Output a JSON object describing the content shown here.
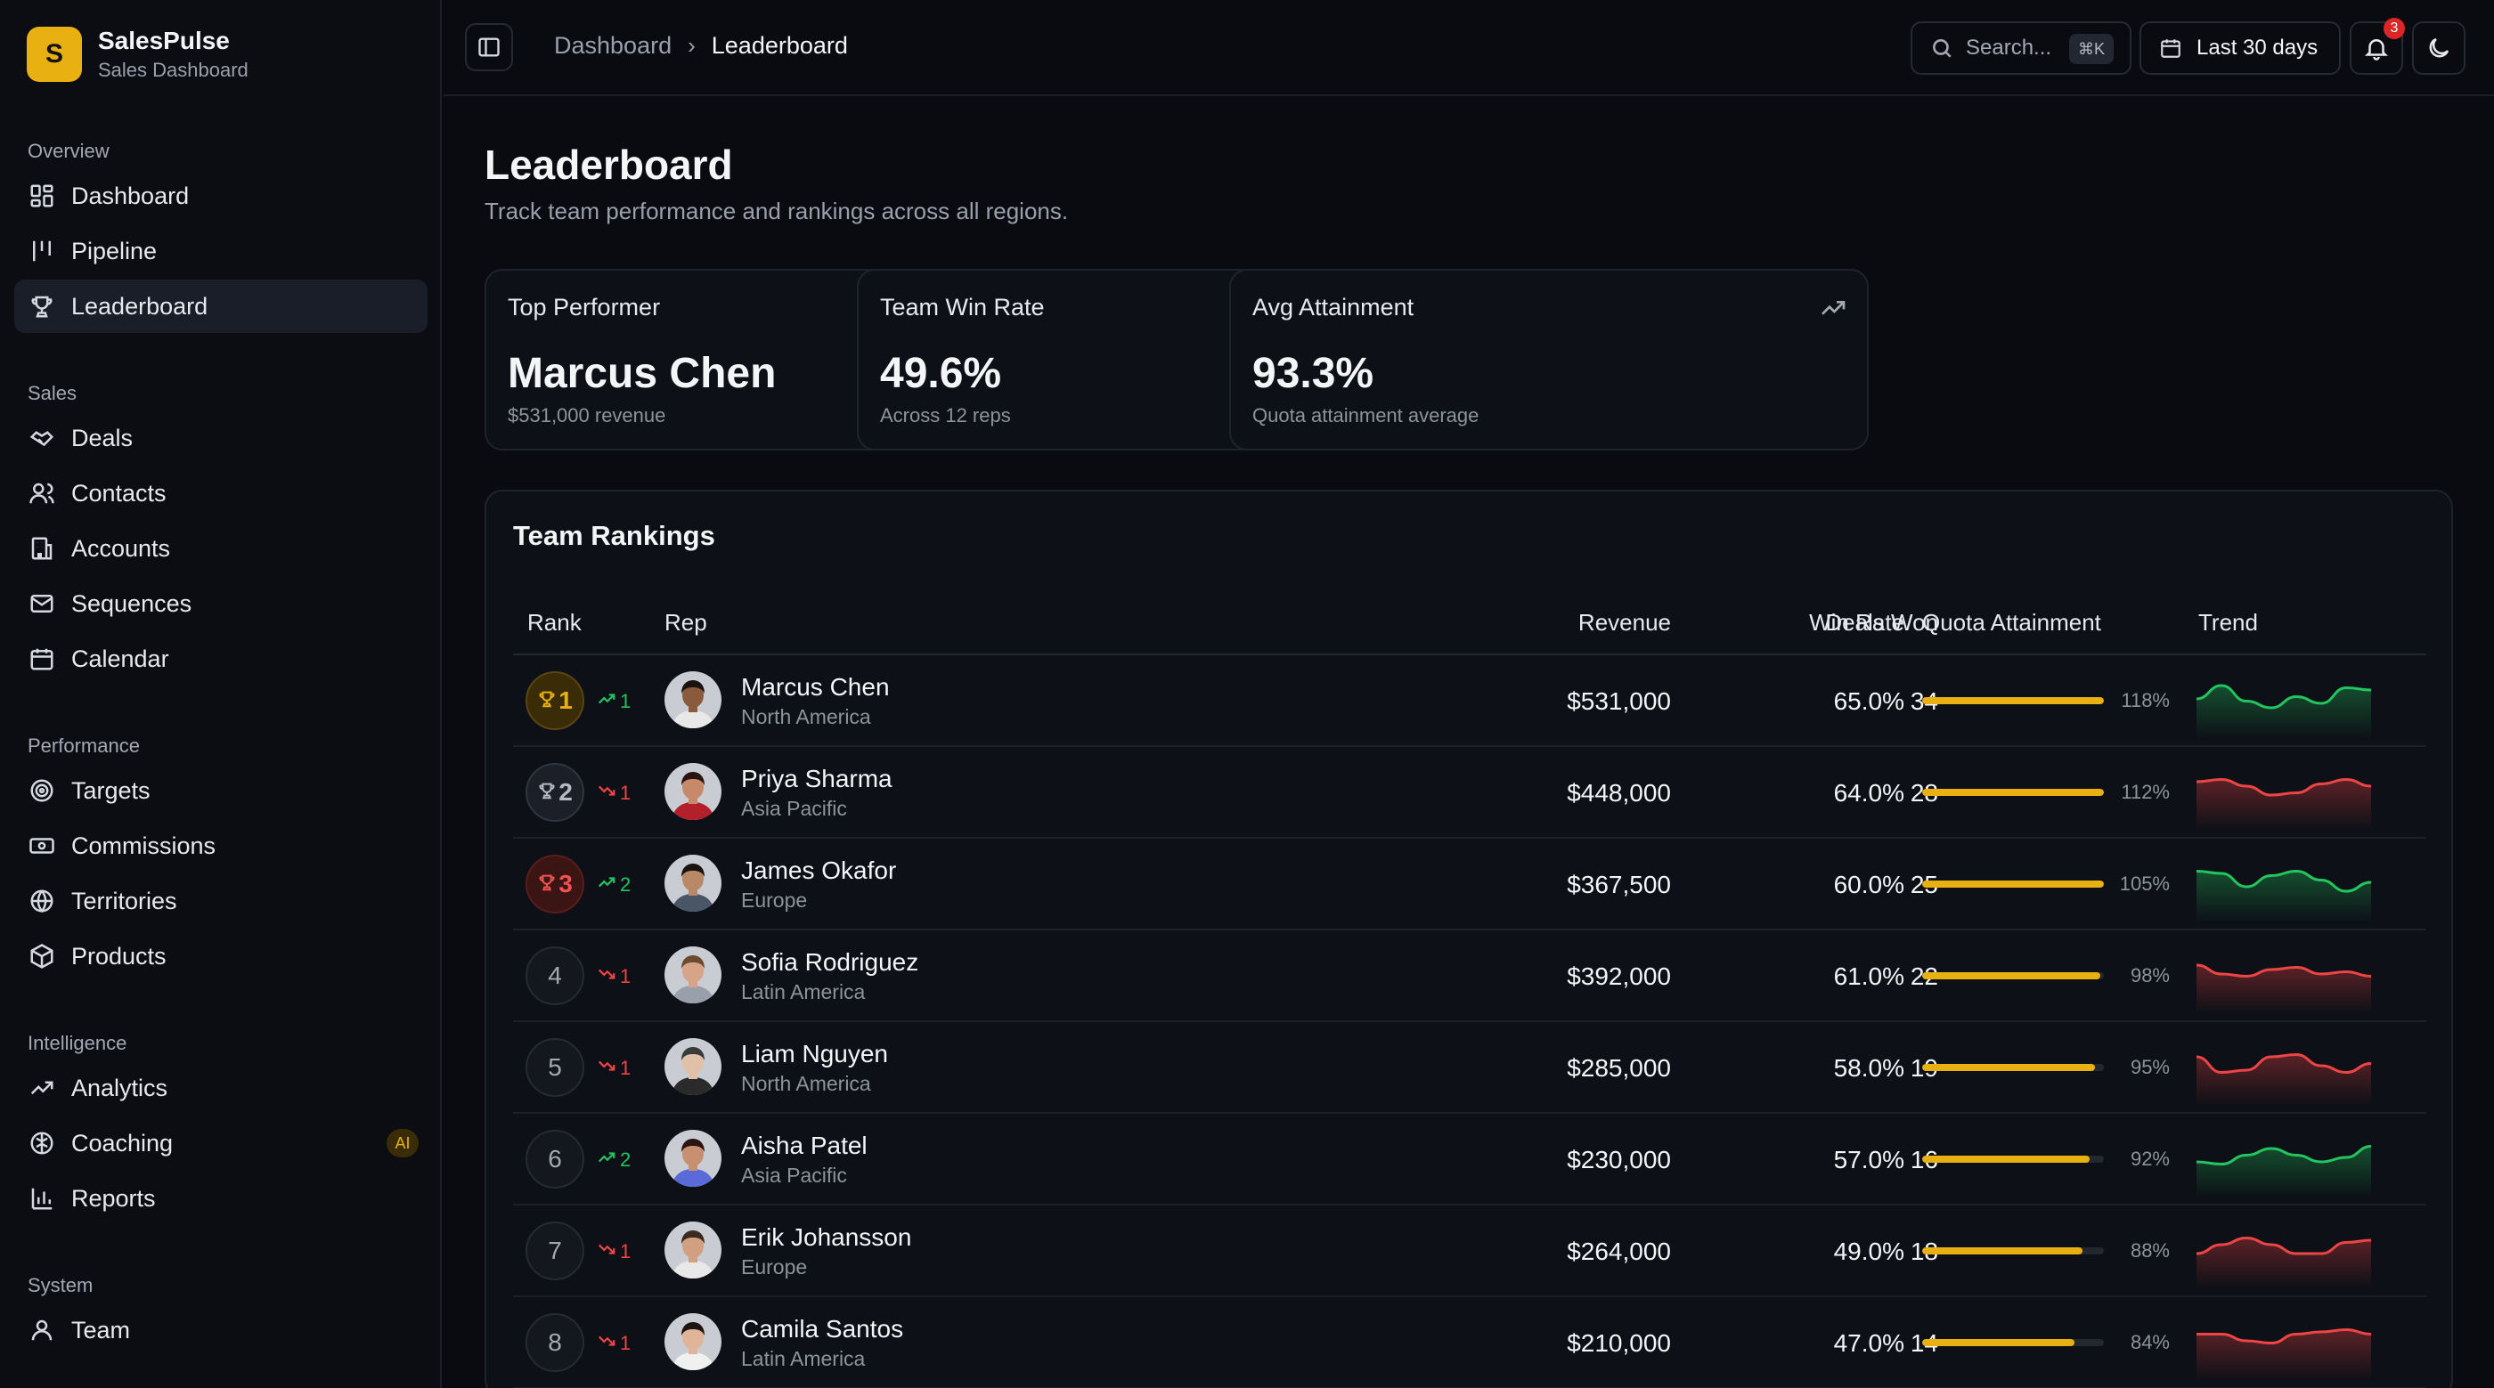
{
  "brand": {
    "logo_letter": "S",
    "name": "SalesPulse",
    "subtitle": "Sales Dashboard"
  },
  "sidebar": {
    "sections": [
      {
        "title": "Overview",
        "items": [
          {
            "label": "Dashboard",
            "icon": "grid-icon"
          },
          {
            "label": "Pipeline",
            "icon": "pipeline-icon"
          },
          {
            "label": "Leaderboard",
            "icon": "trophy-icon",
            "active": true
          }
        ]
      },
      {
        "title": "Sales",
        "items": [
          {
            "label": "Deals",
            "icon": "handshake-icon"
          },
          {
            "label": "Contacts",
            "icon": "users-icon"
          },
          {
            "label": "Accounts",
            "icon": "building-icon"
          },
          {
            "label": "Sequences",
            "icon": "mail-icon"
          },
          {
            "label": "Calendar",
            "icon": "calendar-icon"
          }
        ]
      },
      {
        "title": "Performance",
        "items": [
          {
            "label": "Targets",
            "icon": "target-icon"
          },
          {
            "label": "Commissions",
            "icon": "banknote-icon"
          },
          {
            "label": "Territories",
            "icon": "globe-icon"
          },
          {
            "label": "Products",
            "icon": "package-icon"
          }
        ]
      },
      {
        "title": "Intelligence",
        "items": [
          {
            "label": "Analytics",
            "icon": "trending-up-icon"
          },
          {
            "label": "Coaching",
            "icon": "brain-icon",
            "badge": "AI"
          },
          {
            "label": "Reports",
            "icon": "bar-chart-icon"
          }
        ]
      },
      {
        "title": "System",
        "items": [
          {
            "label": "Team",
            "icon": "user-icon"
          }
        ]
      }
    ]
  },
  "topbar": {
    "breadcrumb": [
      "Dashboard",
      "Leaderboard"
    ],
    "search_placeholder": "Search...",
    "search_shortcut": "⌘K",
    "date_range": "Last 30 days",
    "notification_count": "3"
  },
  "page": {
    "title": "Leaderboard",
    "subtitle": "Track team performance and rankings across all regions."
  },
  "cards": [
    {
      "label": "Top Performer",
      "value": "Marcus Chen",
      "sub": "$531,000 revenue",
      "icon": "trophy-icon",
      "icon_color": "#e8b010"
    },
    {
      "label": "Team Win Rate",
      "value": "49.6%",
      "sub": "Across 12 reps",
      "icon": "target-icon",
      "icon_color": "#a3a8b2"
    },
    {
      "label": "Avg Attainment",
      "value": "93.3%",
      "sub": "Quota attainment average",
      "icon": "trending-up-icon",
      "icon_color": "#a3a8b2"
    }
  ],
  "rankings": {
    "title": "Team Rankings",
    "columns": [
      "Rank",
      "Rep",
      "Revenue",
      "Deals Won",
      "Win Rate",
      "Quota Attainment",
      "Trend"
    ],
    "rows": [
      {
        "rank": "1",
        "style": "gold",
        "delta_dir": "up",
        "delta": "1",
        "name": "Marcus Chen",
        "region": "North America",
        "revenue": "$531,000",
        "deals": "34",
        "win_rate": "65.0%",
        "quota": 1.0,
        "quota_label": "118%",
        "trend_color": "#22c55e",
        "trend": [
          0.5,
          0.2,
          0.55,
          0.7,
          0.45,
          0.6,
          0.25,
          0.3
        ],
        "skin": "#8a5a3c",
        "hair": "#1a1410",
        "shirt": "#e8e8e8"
      },
      {
        "rank": "2",
        "style": "silver",
        "delta_dir": "down",
        "delta": "1",
        "name": "Priya Sharma",
        "region": "Asia Pacific",
        "revenue": "$448,000",
        "deals": "28",
        "win_rate": "64.0%",
        "quota": 1.0,
        "quota_label": "112%",
        "trend_color": "#ef4444",
        "trend": [
          0.3,
          0.25,
          0.4,
          0.6,
          0.55,
          0.35,
          0.25,
          0.4
        ],
        "skin": "#c68a6a",
        "hair": "#2a1510",
        "shirt": "#b4202a"
      },
      {
        "rank": "3",
        "style": "bronze",
        "delta_dir": "up",
        "delta": "2",
        "name": "James Okafor",
        "region": "Europe",
        "revenue": "$367,500",
        "deals": "25",
        "win_rate": "60.0%",
        "quota": 1.0,
        "quota_label": "105%",
        "trend_color": "#22c55e",
        "trend": [
          0.25,
          0.3,
          0.6,
          0.35,
          0.25,
          0.45,
          0.7,
          0.5
        ],
        "skin": "#b98866",
        "hair": "#1a1410",
        "shirt": "#4a5566"
      },
      {
        "rank": "4",
        "style": "plain",
        "delta_dir": "down",
        "delta": "1",
        "name": "Sofia Rodriguez",
        "region": "Latin America",
        "revenue": "$392,000",
        "deals": "22",
        "win_rate": "61.0%",
        "quota": 0.98,
        "quota_label": "98%",
        "trend_color": "#ef4444",
        "trend": [
          0.3,
          0.5,
          0.55,
          0.4,
          0.35,
          0.5,
          0.45,
          0.55
        ],
        "skin": "#d8a488",
        "hair": "#6b4a32",
        "shirt": "#9aa0ab"
      },
      {
        "rank": "5",
        "style": "plain",
        "delta_dir": "down",
        "delta": "1",
        "name": "Liam Nguyen",
        "region": "North America",
        "revenue": "$285,000",
        "deals": "19",
        "win_rate": "58.0%",
        "quota": 0.95,
        "quota_label": "95%",
        "trend_color": "#ef4444",
        "trend": [
          0.3,
          0.65,
          0.6,
          0.3,
          0.25,
          0.5,
          0.65,
          0.45
        ],
        "skin": "#e0c0a8",
        "hair": "#3a3a3a",
        "shirt": "#2a2a2a"
      },
      {
        "rank": "6",
        "style": "plain",
        "delta_dir": "up",
        "delta": "2",
        "name": "Aisha Patel",
        "region": "Asia Pacific",
        "revenue": "$230,000",
        "deals": "16",
        "win_rate": "57.0%",
        "quota": 0.92,
        "quota_label": "92%",
        "trend_color": "#22c55e",
        "trend": [
          0.6,
          0.65,
          0.45,
          0.3,
          0.45,
          0.6,
          0.5,
          0.25
        ],
        "skin": "#c89070",
        "hair": "#2a1510",
        "shirt": "#5a6ad8"
      },
      {
        "rank": "7",
        "style": "plain",
        "delta_dir": "down",
        "delta": "1",
        "name": "Erik Johansson",
        "region": "Europe",
        "revenue": "$264,000",
        "deals": "18",
        "win_rate": "49.0%",
        "quota": 0.88,
        "quota_label": "88%",
        "trend_color": "#ef4444",
        "trend": [
          0.6,
          0.4,
          0.25,
          0.4,
          0.6,
          0.6,
          0.35,
          0.3
        ],
        "skin": "#d2a080",
        "hair": "#3a2a20",
        "shirt": "#e8e8e8"
      },
      {
        "rank": "8",
        "style": "plain",
        "delta_dir": "down",
        "delta": "1",
        "name": "Camila Santos",
        "region": "Latin America",
        "revenue": "$210,000",
        "deals": "14",
        "win_rate": "47.0%",
        "quota": 0.84,
        "quota_label": "84%",
        "trend_color": "#ef4444",
        "trend": [
          0.35,
          0.35,
          0.5,
          0.55,
          0.35,
          0.3,
          0.25,
          0.35
        ],
        "skin": "#e0b498",
        "hair": "#1e1410",
        "shirt": "#f0f0f0"
      }
    ]
  }
}
